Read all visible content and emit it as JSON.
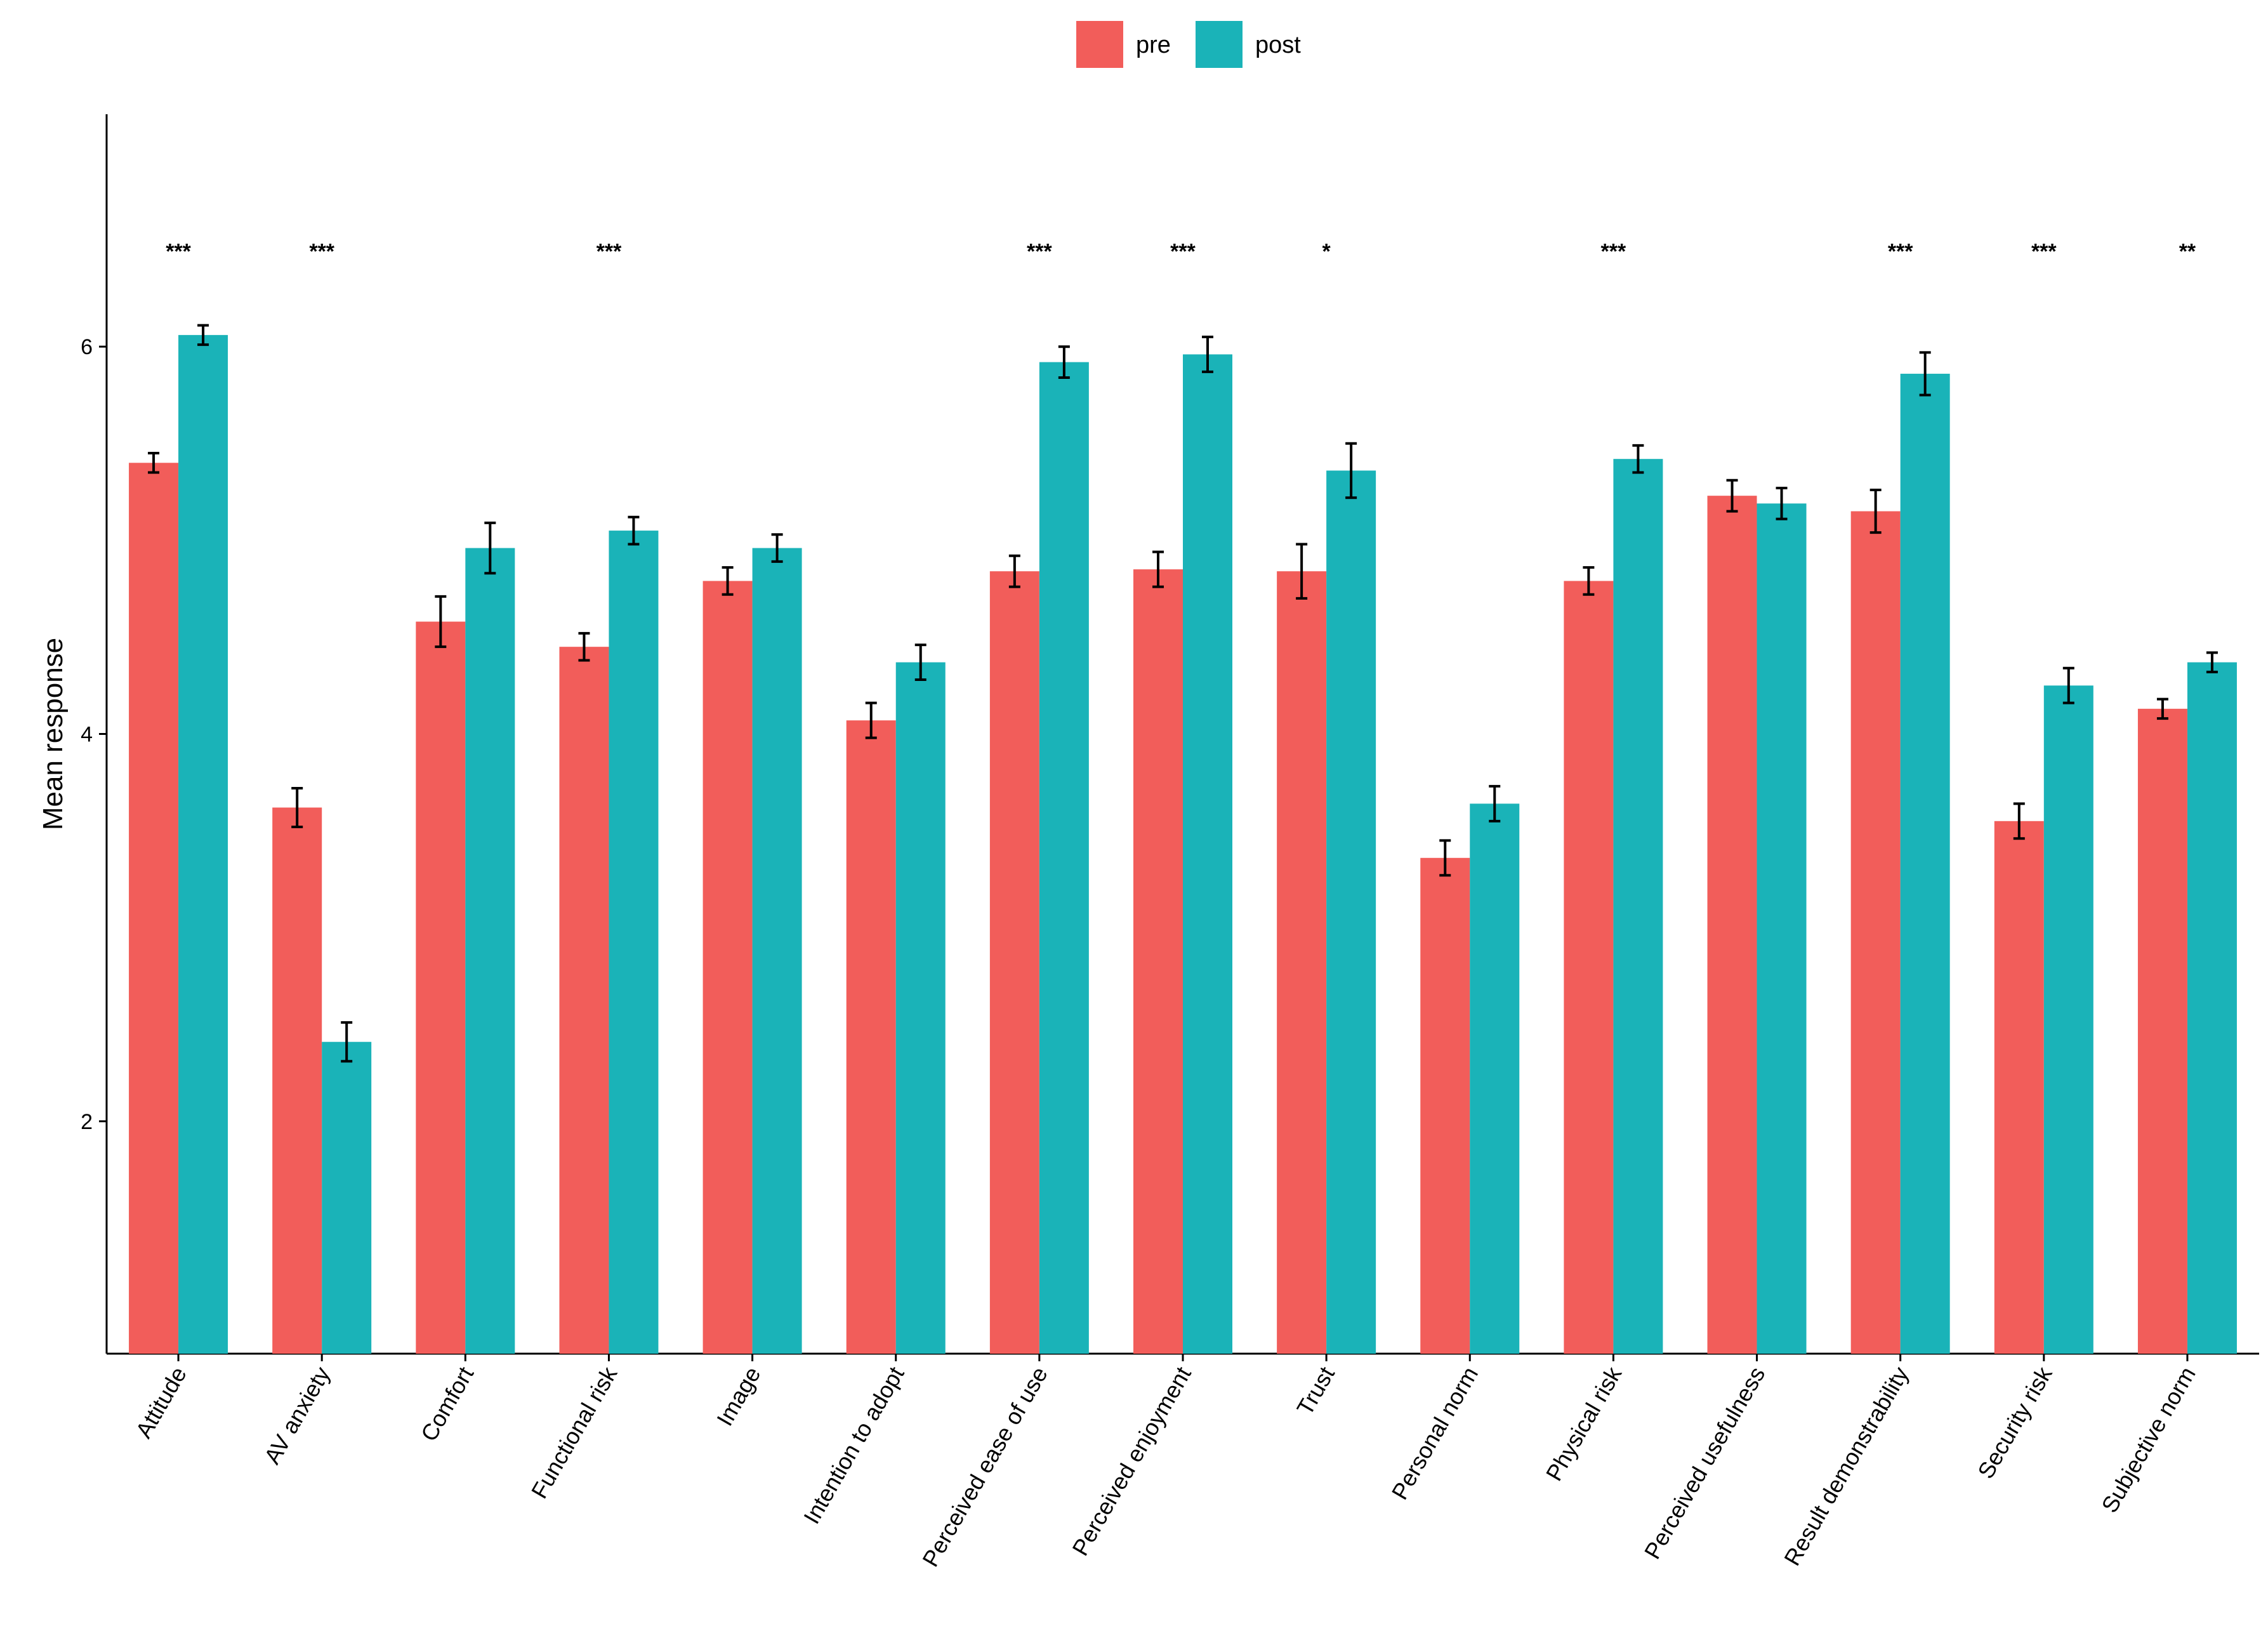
{
  "chart_data": {
    "type": "bar",
    "title": "",
    "xlabel": "",
    "ylabel": "Mean response",
    "ylim": [
      0.8,
      7.2
    ],
    "yticks": [
      2,
      4,
      6
    ],
    "grid": false,
    "legend_position": "top-center",
    "categories": [
      "Attitude",
      "AV anxiety",
      "Comfort",
      "Functional risk",
      "Image",
      "Intention to adopt",
      "Perceived ease of use",
      "Perceived enjoyment",
      "Trust",
      "Personal norm",
      "Physical risk",
      "Perceived usefulness",
      "Result demonstrability",
      "Security risk",
      "Subjective norm"
    ],
    "series": [
      {
        "name": "pre",
        "color": "#F25D5A",
        "values": [
          5.4,
          3.62,
          4.58,
          4.45,
          4.79,
          4.07,
          4.84,
          4.85,
          4.84,
          3.36,
          4.79,
          5.23,
          5.15,
          3.55,
          4.13
        ],
        "errors": [
          0.05,
          0.1,
          0.13,
          0.07,
          0.07,
          0.09,
          0.08,
          0.09,
          0.14,
          0.09,
          0.07,
          0.08,
          0.11,
          0.09,
          0.05
        ]
      },
      {
        "name": "post",
        "color": "#1AB3B8",
        "values": [
          6.06,
          2.41,
          4.96,
          5.05,
          4.96,
          4.37,
          5.92,
          5.96,
          5.36,
          3.64,
          5.42,
          5.19,
          5.86,
          4.25,
          4.37
        ]
      }
    ],
    "post_errors": [
      0.05,
      0.1,
      0.13,
      0.07,
      0.07,
      0.09,
      0.08,
      0.09,
      0.14,
      0.09,
      0.07,
      0.08,
      0.11,
      0.09,
      0.05
    ],
    "significance": [
      "***",
      "***",
      "",
      "***",
      "",
      "",
      "***",
      "***",
      "*",
      "",
      "***",
      "",
      "***",
      "***",
      "**"
    ]
  }
}
